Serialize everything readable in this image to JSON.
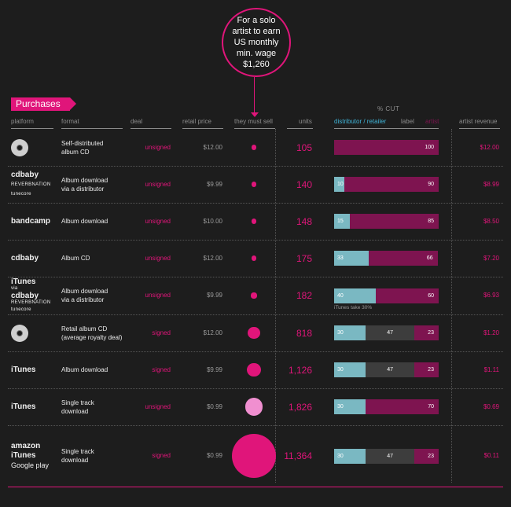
{
  "callout": {
    "text": "For a solo\nartist to earn\nUS monthly\nmin. wage\n$1,260"
  },
  "section_tag": "Purchases",
  "pct_cut_label": "% CUT",
  "headers": {
    "platform": "platform",
    "format": "format",
    "deal": "deal",
    "retail_price": "retail price",
    "must_sell": "they must sell",
    "units": "units",
    "distributor": "distributor / retailer",
    "label": "label",
    "artist": "artist",
    "artist_revenue": "artist revenue"
  },
  "colors": {
    "accent": "#e0157a",
    "distributor": "#7ab8c2",
    "label": "#3d3d3d",
    "artist": "#7e1450",
    "bubble_light": "#f08fd0"
  },
  "chart_data": {
    "type": "table",
    "rows": [
      {
        "platform": [
          "CD icon"
        ],
        "format": "Self-distributed\nalbum CD",
        "deal": "unsigned",
        "retail_price": "$12.00",
        "units": 105,
        "units_label": "105",
        "cut": {
          "distributor": 0,
          "label": 0,
          "artist": 100
        },
        "artist_revenue": "$12.00"
      },
      {
        "platform": [
          "cdbaby",
          "REVERBNATION",
          "tunecore"
        ],
        "format": "Album download\nvia a distributor",
        "deal": "unsigned",
        "retail_price": "$9.99",
        "units": 140,
        "units_label": "140",
        "cut": {
          "distributor": 10,
          "label": 0,
          "artist": 90
        },
        "artist_revenue": "$8.99"
      },
      {
        "platform": [
          "bandcamp"
        ],
        "format": "Album download",
        "deal": "unsigned",
        "retail_price": "$10.00",
        "units": 148,
        "units_label": "148",
        "cut": {
          "distributor": 15,
          "label": 0,
          "artist": 85
        },
        "artist_revenue": "$8.50"
      },
      {
        "platform": [
          "cdbaby"
        ],
        "format": "Album CD",
        "deal": "unsigned",
        "retail_price": "$12.00",
        "units": 175,
        "units_label": "175",
        "cut": {
          "distributor": 33,
          "label": 0,
          "artist": 66
        },
        "artist_revenue": "$7.20"
      },
      {
        "platform": [
          "iTunes",
          "via",
          "cdbaby",
          "REVERBNATION",
          "tunecore"
        ],
        "format": "Album download\nvia a distributor",
        "deal": "unsigned",
        "retail_price": "$9.99",
        "units": 182,
        "units_label": "182",
        "cut": {
          "distributor": 40,
          "label": 0,
          "artist": 60
        },
        "note": "iTunes take 30%",
        "artist_revenue": "$6.93"
      },
      {
        "platform": [
          "CD icon"
        ],
        "format": "Retail album CD\n(average royalty deal)",
        "deal": "signed",
        "retail_price": "$12.00",
        "units": 818,
        "units_label": "818",
        "cut": {
          "distributor": 30,
          "label": 47,
          "artist": 23
        },
        "artist_revenue": "$1.20"
      },
      {
        "platform": [
          "iTunes"
        ],
        "format": "Album download",
        "deal": "signed",
        "retail_price": "$9.99",
        "units": 1126,
        "units_label": "1,126",
        "cut": {
          "distributor": 30,
          "label": 47,
          "artist": 23
        },
        "artist_revenue": "$1.11"
      },
      {
        "platform": [
          "iTunes"
        ],
        "format": "Single track\ndownload",
        "deal": "unsigned",
        "retail_price": "$0.99",
        "units": 1826,
        "units_label": "1,826",
        "cut": {
          "distributor": 30,
          "label": 0,
          "artist": 70
        },
        "artist_revenue": "$0.69"
      },
      {
        "platform": [
          "amazon",
          "iTunes",
          "Google play"
        ],
        "format": "Single track\ndownload",
        "deal": "signed",
        "retail_price": "$0.99",
        "units": 11364,
        "units_label": "11,364",
        "cut": {
          "distributor": 30,
          "label": 47,
          "artist": 23
        },
        "artist_revenue": "$0.11"
      }
    ]
  }
}
